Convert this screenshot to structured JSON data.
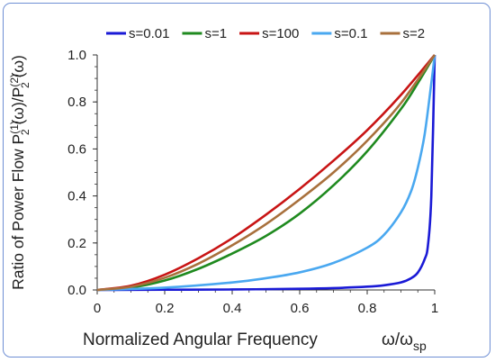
{
  "chart_data": {
    "type": "line",
    "title": "",
    "ylabel": "Ratio of Power Flow",
    "ylabel_expression": {
      "base1": "P",
      "sub1": "2",
      "sup1": "(1)",
      "arg1": " (ω)/",
      "base2": "P",
      "sub2": "2",
      "sup2": "(2)",
      "arg2": " (ω)"
    },
    "xlabel": "Normalized Angular Frequency",
    "xlabel_symbol": {
      "base": "ω/ω",
      "sub": "sp"
    },
    "xlim": [
      0,
      1
    ],
    "ylim": [
      0,
      1
    ],
    "x_ticks": [
      "0",
      "0.2",
      "0.4",
      "0.6",
      "0.8",
      "1"
    ],
    "y_ticks": [
      "0.0",
      "0.2",
      "0.4",
      "0.6",
      "0.8",
      "1.0"
    ],
    "grid": false,
    "legend_position": "top",
    "series": [
      {
        "name": "s=0.01",
        "color": "#1a1ad6",
        "x": [
          0,
          0.2,
          0.4,
          0.6,
          0.7,
          0.8,
          0.85,
          0.9,
          0.93,
          0.95,
          0.97,
          0.98,
          0.99,
          1
        ],
        "y": [
          0,
          0.001,
          0.002,
          0.005,
          0.008,
          0.014,
          0.02,
          0.032,
          0.05,
          0.074,
          0.13,
          0.19,
          0.4,
          1.0
        ]
      },
      {
        "name": "s=1",
        "color": "#1f8a1f",
        "x": [
          0,
          0.1,
          0.2,
          0.3,
          0.4,
          0.5,
          0.6,
          0.7,
          0.8,
          0.9,
          0.95,
          1
        ],
        "y": [
          0,
          0.01,
          0.04,
          0.09,
          0.155,
          0.23,
          0.325,
          0.445,
          0.59,
          0.77,
          0.88,
          1.0
        ]
      },
      {
        "name": "s=100",
        "color": "#c81414",
        "x": [
          0,
          0.1,
          0.2,
          0.3,
          0.4,
          0.5,
          0.6,
          0.7,
          0.8,
          0.9,
          1
        ],
        "y": [
          0,
          0.018,
          0.065,
          0.135,
          0.22,
          0.32,
          0.43,
          0.55,
          0.68,
          0.83,
          1.0
        ]
      },
      {
        "name": "s=0.1",
        "color": "#4aa8f0",
        "x": [
          0,
          0.2,
          0.4,
          0.5,
          0.6,
          0.7,
          0.8,
          0.85,
          0.9,
          0.93,
          0.95,
          0.97,
          0.99,
          1
        ],
        "y": [
          0,
          0.01,
          0.032,
          0.05,
          0.075,
          0.115,
          0.18,
          0.235,
          0.33,
          0.42,
          0.52,
          0.66,
          0.88,
          1.0
        ]
      },
      {
        "name": "s=2",
        "color": "#a8703c",
        "x": [
          0,
          0.1,
          0.2,
          0.3,
          0.4,
          0.5,
          0.6,
          0.7,
          0.8,
          0.9,
          1
        ],
        "y": [
          0,
          0.014,
          0.052,
          0.112,
          0.19,
          0.28,
          0.385,
          0.5,
          0.635,
          0.795,
          1.0
        ]
      }
    ]
  }
}
